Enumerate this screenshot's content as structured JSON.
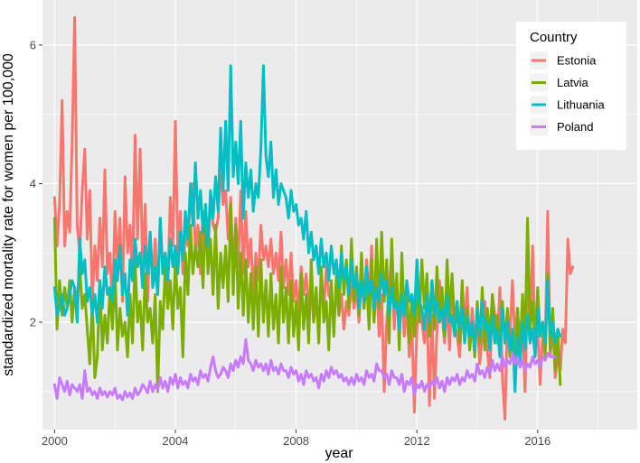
{
  "chart_data": {
    "type": "line",
    "title": "",
    "xlabel": "year",
    "ylabel": "standardized mortality rate for women per 100,000",
    "xlim": [
      1999.6,
      2019.3
    ],
    "ylim": [
      0.45,
      6.65
    ],
    "xticks": [
      2000,
      2004,
      2008,
      2012,
      2016
    ],
    "xtick_labels": [
      "2000",
      "2004",
      "2008",
      "2012",
      "2016"
    ],
    "yticks": [
      2,
      4,
      6
    ],
    "ytick_labels": [
      "2",
      "4",
      "6"
    ],
    "grid": true,
    "legend": {
      "title": "Country",
      "position": "top-right",
      "entries": [
        "Estonia",
        "Latvia",
        "Lithuania",
        "Poland"
      ]
    },
    "x_start": 2000,
    "x_step": 0.08333,
    "series": [
      {
        "name": "Estonia",
        "color": "#F8766D",
        "values": [
          3.8,
          3.1,
          3.7,
          5.2,
          3.1,
          3.6,
          3.3,
          4.6,
          6.4,
          3.4,
          3.0,
          3.9,
          4.5,
          3.2,
          3.9,
          2.3,
          3.1,
          2.6,
          3.5,
          2.8,
          4.2,
          2.7,
          3.0,
          2.2,
          3.6,
          2.8,
          3.5,
          2.3,
          4.1,
          3.0,
          3.4,
          2.6,
          4.7,
          3.2,
          4.5,
          2.8,
          3.7,
          2.3,
          3.3,
          2.6,
          3.2,
          2.4,
          3.5,
          2.8,
          3.0,
          2.5,
          3.8,
          3.1,
          4.9,
          3.0,
          3.6,
          2.7,
          3.3,
          3.1,
          3.9,
          4.0,
          3.0,
          3.4,
          2.7,
          3.6,
          3.2,
          3.0,
          3.8,
          3.4,
          3.3,
          3.5,
          4.3,
          3.7,
          3.9,
          3.2,
          3.8,
          2.7,
          3.5,
          2.8,
          3.9,
          2.7,
          3.6,
          2.8,
          3.2,
          2.4,
          3.0,
          2.6,
          3.4,
          2.9,
          3.1,
          2.8,
          3.2,
          2.7,
          3.0,
          2.6,
          3.3,
          2.5,
          2.9,
          2.4,
          3.0,
          2.3,
          2.6,
          2.1,
          2.8,
          2.4,
          2.7,
          2.2,
          2.5,
          2.0,
          2.3,
          1.9,
          2.6,
          2.2,
          2.8,
          2.4,
          2.3,
          2.0,
          2.5,
          2.1,
          2.4,
          1.9,
          2.3,
          2.1,
          2.6,
          2.2,
          2.5,
          2.0,
          2.7,
          2.2,
          2.9,
          2.3,
          3.1,
          2.0,
          2.6,
          1.8,
          2.4,
          1.0,
          2.0,
          2.5,
          3.0,
          1.9,
          2.6,
          2.1,
          2.4,
          1.8,
          2.3,
          1.5,
          2.0,
          0.7,
          1.9,
          2.4,
          2.0,
          1.7,
          2.2,
          0.8,
          2.1,
          0.9,
          1.9,
          2.6,
          2.1,
          1.7,
          2.3,
          1.6,
          2.5,
          2.0,
          1.8,
          1.5,
          2.3,
          2.0,
          2.5,
          1.6,
          2.2,
          1.7,
          2.0,
          1.4,
          1.8,
          2.3,
          1.6,
          1.2,
          2.4,
          2.1,
          1.7,
          2.5,
          1.2,
          0.6,
          2.1,
          1.8,
          2.6,
          1.7,
          2.2,
          1.5,
          2.0,
          1.0,
          2.5,
          1.8,
          3.1,
          1.6,
          1.9,
          1.1,
          1.8,
          1.6,
          3.6,
          1.5,
          2.0,
          1.2,
          1.5,
          1.3,
          1.9,
          1.7,
          3.2,
          2.7,
          2.8
        ]
      },
      {
        "name": "Latvia",
        "color": "#7CAE00",
        "values": [
          3.5,
          1.9,
          2.6,
          2.1,
          2.5,
          2.2,
          2.6,
          2.0,
          2.5,
          2.3,
          2.8,
          2.2,
          2.4,
          1.9,
          1.4,
          2.3,
          1.2,
          1.5,
          2.6,
          1.6,
          2.1,
          1.7,
          2.5,
          1.9,
          2.8,
          1.6,
          2.2,
          1.8,
          2.0,
          1.5,
          2.4,
          1.7,
          2.9,
          2.0,
          2.3,
          1.6,
          2.7,
          2.0,
          2.2,
          1.7,
          2.4,
          1.0,
          2.3,
          1.9,
          2.8,
          2.2,
          2.6,
          1.9,
          2.9,
          2.2,
          2.5,
          1.5,
          3.0,
          2.4,
          3.4,
          2.7,
          3.1,
          2.8,
          3.3,
          2.5,
          3.6,
          2.7,
          3.2,
          2.4,
          3.4,
          2.2,
          3.0,
          2.5,
          3.1,
          2.3,
          3.7,
          2.4,
          3.4,
          2.2,
          3.0,
          2.1,
          2.9,
          2.0,
          2.7,
          1.9,
          2.8,
          1.8,
          2.9,
          2.0,
          2.6,
          1.8,
          2.7,
          1.9,
          2.4,
          1.7,
          2.8,
          2.0,
          2.5,
          1.7,
          2.6,
          1.8,
          2.3,
          1.6,
          2.7,
          1.9,
          2.4,
          1.7,
          2.9,
          2.0,
          2.5,
          1.7,
          2.8,
          2.0,
          2.3,
          1.6,
          2.6,
          1.8,
          2.7,
          2.1,
          3.1,
          2.4,
          2.9,
          2.2,
          3.2,
          2.3,
          2.8,
          2.1,
          3.0,
          2.2,
          2.6,
          1.9,
          2.9,
          2.0,
          3.2,
          2.2,
          3.3,
          2.3,
          2.9,
          1.7,
          3.2,
          2.2,
          2.7,
          1.6,
          3.0,
          2.1,
          2.5,
          1.7,
          2.4,
          1.8,
          2.6,
          2.0,
          2.9,
          2.2,
          2.7,
          1.8,
          2.6,
          1.9,
          2.8,
          2.0,
          2.5,
          1.8,
          2.9,
          2.1,
          2.7,
          2.0,
          2.3,
          1.7,
          2.6,
          1.8,
          2.2,
          1.6,
          2.0,
          1.5,
          2.3,
          1.7,
          2.5,
          1.6,
          2.2,
          1.8,
          2.4,
          1.9,
          2.1,
          1.6,
          2.3,
          1.7,
          2.2,
          1.5,
          1.9,
          1.4,
          2.2,
          1.6,
          2.4,
          1.7,
          3.5,
          1.9,
          2.3,
          1.6,
          2.5,
          1.8,
          2.0,
          1.5,
          2.7,
          1.6,
          2.2,
          1.3,
          1.9,
          1.1
        ]
      },
      {
        "name": "Lithuania",
        "color": "#00BFC4",
        "values": [
          2.5,
          2.1,
          2.2,
          2.4,
          2.1,
          2.2,
          2.4,
          2.6,
          2.5,
          2.0,
          3.2,
          2.7,
          2.9,
          2.3,
          2.5,
          2.1,
          2.4,
          2.0,
          2.6,
          2.2,
          2.8,
          2.4,
          2.5,
          2.3,
          2.9,
          2.6,
          3.1,
          2.4,
          2.7,
          2.1,
          2.9,
          2.6,
          3.2,
          2.8,
          3.0,
          2.5,
          3.1,
          2.7,
          3.3,
          2.5,
          2.8,
          2.4,
          3.5,
          2.7,
          3.0,
          2.6,
          3.2,
          2.8,
          3.1,
          2.7,
          3.3,
          2.9,
          3.6,
          3.2,
          4.0,
          3.4,
          4.3,
          3.5,
          3.9,
          3.3,
          3.7,
          3.1,
          3.9,
          3.5,
          4.1,
          3.6,
          4.8,
          3.9,
          4.9,
          3.9,
          5.7,
          4.1,
          4.6,
          4.0,
          4.9,
          3.5,
          4.3,
          3.8,
          4.2,
          3.6,
          4.0,
          3.8,
          4.5,
          5.7,
          4.4,
          4.1,
          4.6,
          3.8,
          4.2,
          3.7,
          4.0,
          3.9,
          3.8,
          3.5,
          3.9,
          3.6,
          3.7,
          3.4,
          3.5,
          3.2,
          3.6,
          3.0,
          3.3,
          2.9,
          3.1,
          2.7,
          3.2,
          2.8,
          3.0,
          2.6,
          3.1,
          2.7,
          2.9,
          2.5,
          3.0,
          2.6,
          2.8,
          2.4,
          2.9,
          2.5,
          2.7,
          2.2,
          2.6,
          2.3,
          2.8,
          2.4,
          2.6,
          2.2,
          2.5,
          2.3,
          2.7,
          2.4,
          2.6,
          2.1,
          2.5,
          2.2,
          2.3,
          1.9,
          2.4,
          2.1,
          2.6,
          2.3,
          2.4,
          2.1,
          2.9,
          2.3,
          2.2,
          1.9,
          2.4,
          2.0,
          2.6,
          2.1,
          2.3,
          2.0,
          2.2,
          1.9,
          2.4,
          2.0,
          2.1,
          1.8,
          2.3,
          1.9,
          2.2,
          1.7,
          2.1,
          1.8,
          2.0,
          1.6,
          2.2,
          1.8,
          2.3,
          1.9,
          2.0,
          1.6,
          2.1,
          1.7,
          1.9,
          1.5,
          2.2,
          1.7,
          2.0,
          1.6,
          1.9,
          1.0,
          1.8,
          1.4,
          2.0,
          1.6,
          2.1,
          1.7,
          1.9,
          1.5,
          2.2,
          1.8,
          2.0,
          1.7,
          2.6,
          1.8,
          2.0,
          1.7,
          1.9,
          1.8
        ]
      },
      {
        "name": "Poland",
        "color": "#C77CFF",
        "values": [
          1.1,
          0.9,
          1.2,
          1.1,
          1.0,
          1.15,
          0.95,
          1.1,
          1.05,
          1.0,
          1.1,
          0.9,
          1.3,
          1.0,
          1.05,
          0.95,
          1.0,
          0.9,
          1.05,
          0.95,
          1.0,
          0.92,
          1.0,
          0.95,
          1.05,
          0.9,
          0.95,
          0.88,
          1.0,
          0.92,
          0.98,
          0.9,
          1.05,
          0.95,
          1.0,
          1.1,
          1.05,
          0.98,
          1.15,
          1.0,
          1.1,
          1.02,
          1.2,
          1.05,
          1.15,
          1.0,
          1.2,
          1.1,
          1.25,
          1.05,
          1.2,
          1.1,
          1.15,
          1.05,
          1.25,
          1.15,
          1.2,
          1.1,
          1.3,
          1.2,
          1.25,
          1.15,
          1.35,
          1.5,
          1.3,
          1.2,
          1.25,
          1.35,
          1.3,
          1.2,
          1.4,
          1.3,
          1.45,
          1.35,
          1.5,
          1.4,
          1.75,
          1.45,
          1.4,
          1.3,
          1.45,
          1.35,
          1.4,
          1.3,
          1.4,
          1.25,
          1.45,
          1.3,
          1.35,
          1.25,
          1.4,
          1.3,
          1.3,
          1.2,
          1.35,
          1.25,
          1.3,
          1.15,
          1.25,
          1.1,
          1.3,
          1.2,
          1.25,
          1.15,
          1.2,
          1.05,
          1.25,
          1.15,
          1.3,
          1.2,
          1.35,
          1.25,
          1.3,
          1.2,
          1.25,
          1.15,
          1.2,
          1.1,
          1.2,
          1.1,
          1.25,
          1.15,
          1.2,
          1.1,
          1.3,
          1.2,
          1.25,
          1.15,
          1.4,
          1.3,
          1.3,
          1.2,
          1.25,
          1.1,
          1.3,
          1.2,
          1.2,
          1.1,
          1.25,
          1.0,
          1.15,
          1.1,
          1.2,
          0.95,
          1.1,
          1.05,
          1.15,
          1.0,
          1.1,
          1.05,
          1.15,
          1.1,
          1.2,
          1.05,
          1.15,
          1.0,
          1.2,
          1.1,
          1.2,
          1.15,
          1.25,
          1.1,
          1.2,
          1.15,
          1.3,
          1.2,
          1.25,
          1.15,
          1.4,
          1.25,
          1.3,
          1.2,
          1.35,
          1.25,
          1.45,
          1.3,
          1.4,
          1.3,
          1.5,
          1.35,
          1.45,
          1.4,
          1.55,
          1.4,
          1.5,
          1.35,
          1.45,
          1.3,
          1.4,
          1.35,
          1.5,
          1.4,
          1.45,
          1.35,
          1.5,
          1.45,
          1.55,
          1.5,
          1.5,
          1.5
        ]
      }
    ]
  }
}
